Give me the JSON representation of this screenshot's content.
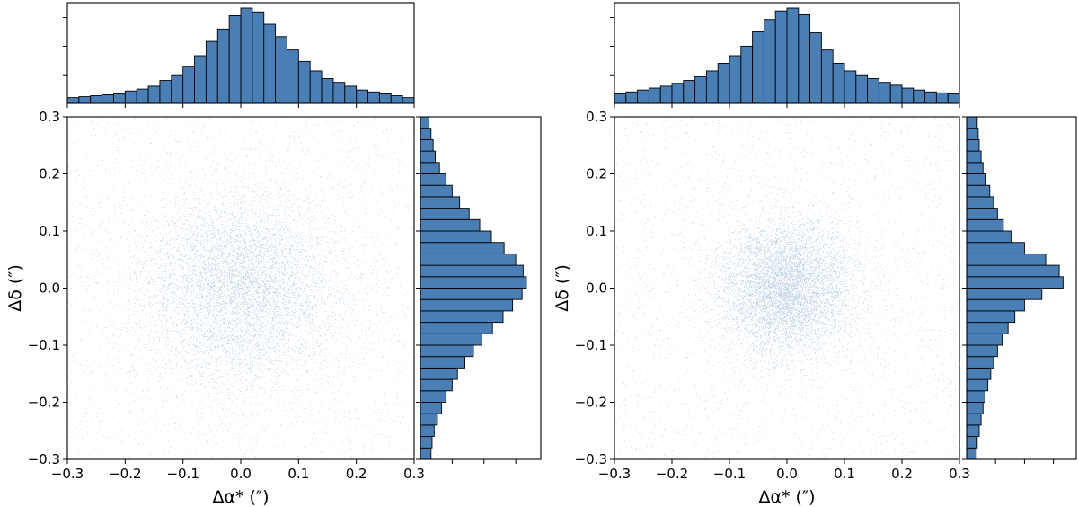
{
  "chart_data": [
    {
      "type": "scatter",
      "panel": "left",
      "xlabel": "Δα* (″)",
      "ylabel": "Δδ (″)",
      "xlim": [
        -0.3,
        0.3
      ],
      "ylim": [
        -0.3,
        0.3
      ],
      "xticks": [
        "−0.3",
        "−0.2",
        "−0.1",
        "0.0",
        "0.1",
        "0.2",
        "0.3"
      ],
      "yticks": [
        "−0.3",
        "−0.2",
        "−0.1",
        "0.0",
        "0.1",
        "0.2",
        "0.3"
      ],
      "tick_values": [
        -0.3,
        -0.2,
        -0.1,
        0.0,
        0.1,
        0.2,
        0.3
      ],
      "point_color": "#4a7fb5",
      "bar_color": "#4a7fb5",
      "bin_edges": [
        -0.3,
        -0.28,
        -0.26,
        -0.24,
        -0.22,
        -0.2,
        -0.18,
        -0.16,
        -0.14,
        -0.12,
        -0.1,
        -0.08,
        -0.06,
        -0.04,
        -0.02,
        0.0,
        0.02,
        0.04,
        0.06,
        0.08,
        0.1,
        0.12,
        0.14,
        0.16,
        0.18,
        0.2,
        0.22,
        0.24,
        0.26,
        0.28,
        0.3
      ],
      "hist_x": [
        0.06,
        0.07,
        0.08,
        0.09,
        0.1,
        0.13,
        0.15,
        0.18,
        0.24,
        0.3,
        0.39,
        0.5,
        0.65,
        0.78,
        0.92,
        1.0,
        0.96,
        0.83,
        0.7,
        0.56,
        0.44,
        0.34,
        0.26,
        0.22,
        0.18,
        0.14,
        0.12,
        0.1,
        0.08,
        0.06
      ],
      "hist_y": [
        0.1,
        0.11,
        0.13,
        0.16,
        0.2,
        0.24,
        0.3,
        0.35,
        0.42,
        0.5,
        0.58,
        0.68,
        0.78,
        0.87,
        0.96,
        1.0,
        0.97,
        0.9,
        0.79,
        0.67,
        0.56,
        0.46,
        0.37,
        0.3,
        0.24,
        0.18,
        0.14,
        0.12,
        0.1,
        0.08
      ],
      "scatter_sigma": 0.085
    },
    {
      "type": "scatter",
      "panel": "right",
      "xlabel": "Δα* (″)",
      "ylabel": "Δδ (″)",
      "xlim": [
        -0.3,
        0.3
      ],
      "ylim": [
        -0.3,
        0.3
      ],
      "xticks": [
        "−0.3",
        "−0.2",
        "−0.1",
        "0.0",
        "0.1",
        "0.2",
        "0.3"
      ],
      "yticks": [
        "−0.3",
        "−0.2",
        "−0.1",
        "0.0",
        "0.1",
        "0.2",
        "0.3"
      ],
      "tick_values": [
        -0.3,
        -0.2,
        -0.1,
        0.0,
        0.1,
        0.2,
        0.3
      ],
      "point_color": "#4a7fb5",
      "bar_color": "#4a7fb5",
      "bin_edges": [
        -0.3,
        -0.28,
        -0.26,
        -0.24,
        -0.22,
        -0.2,
        -0.18,
        -0.16,
        -0.14,
        -0.12,
        -0.1,
        -0.08,
        -0.06,
        -0.04,
        -0.02,
        0.0,
        0.02,
        0.04,
        0.06,
        0.08,
        0.1,
        0.12,
        0.14,
        0.16,
        0.18,
        0.2,
        0.22,
        0.24,
        0.26,
        0.28,
        0.3
      ],
      "hist_x": [
        0.1,
        0.12,
        0.14,
        0.16,
        0.18,
        0.21,
        0.24,
        0.28,
        0.34,
        0.42,
        0.5,
        0.6,
        0.75,
        0.88,
        0.97,
        1.0,
        0.93,
        0.74,
        0.56,
        0.42,
        0.34,
        0.3,
        0.26,
        0.22,
        0.19,
        0.16,
        0.14,
        0.12,
        0.11,
        0.1
      ],
      "hist_y": [
        0.1,
        0.11,
        0.13,
        0.15,
        0.17,
        0.19,
        0.22,
        0.25,
        0.28,
        0.32,
        0.37,
        0.43,
        0.5,
        0.6,
        0.78,
        1.0,
        0.96,
        0.82,
        0.6,
        0.46,
        0.38,
        0.32,
        0.28,
        0.24,
        0.2,
        0.17,
        0.15,
        0.13,
        0.12,
        0.11
      ],
      "scatter_sigma": 0.06
    }
  ]
}
